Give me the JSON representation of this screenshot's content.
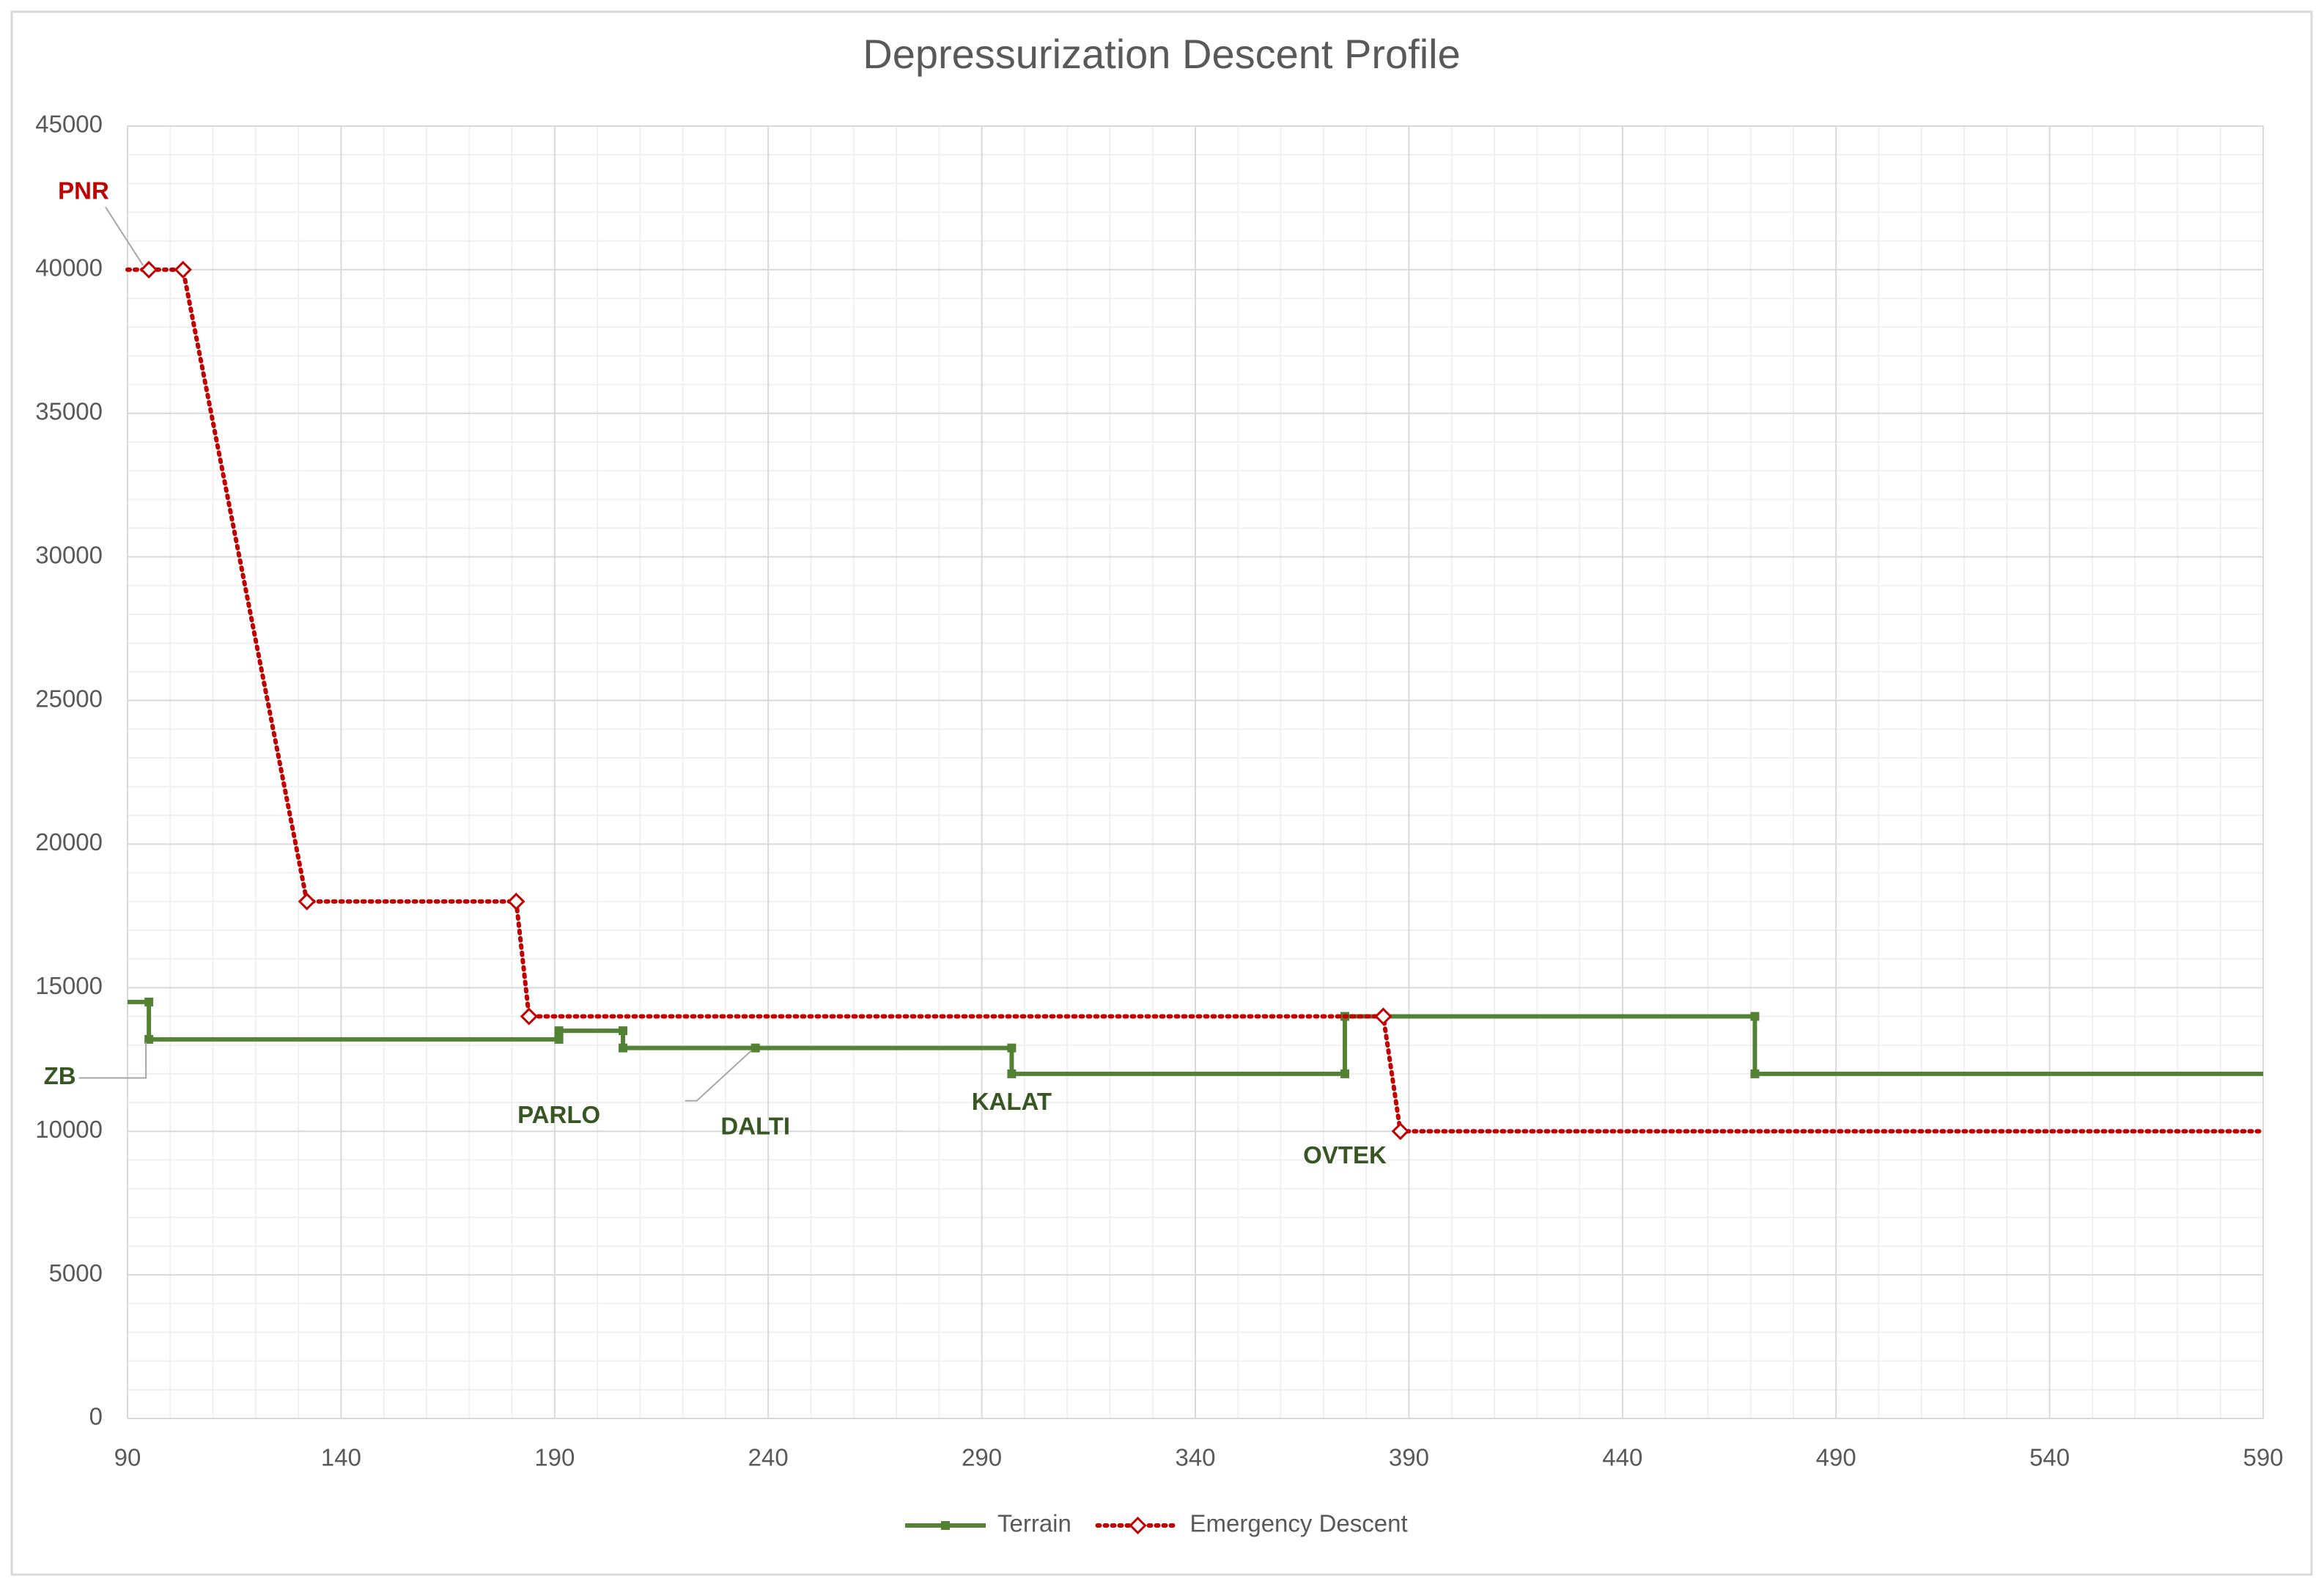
{
  "chart_data": {
    "type": "line",
    "title": "Depressurization Descent Profile",
    "xlim": [
      90,
      590
    ],
    "xticks": [
      90,
      140,
      190,
      240,
      290,
      340,
      390,
      440,
      490,
      540,
      590
    ],
    "ylim": [
      0,
      45000
    ],
    "yticks": [
      0,
      5000,
      10000,
      15000,
      20000,
      25000,
      30000,
      35000,
      40000,
      45000
    ],
    "grid": true,
    "minor_grid": true,
    "legend": "bottom",
    "series": [
      {
        "name": "Terrain",
        "color": "#548235",
        "marker": "square",
        "dash": "solid",
        "x": [
          90,
          95,
          95,
          191,
          191,
          206,
          206,
          237,
          297,
          297,
          375,
          375,
          471,
          471,
          590
        ],
        "values": [
          14500,
          14500,
          13200,
          13200,
          13500,
          13500,
          12900,
          12900,
          12900,
          12000,
          12000,
          14000,
          14000,
          12000,
          12000
        ],
        "point_labels": [
          null,
          null,
          "ZB",
          "PARLO",
          null,
          null,
          null,
          "DALTI",
          null,
          "KALAT",
          "OVTEK",
          null,
          null,
          null,
          null
        ],
        "label_color": "#375623"
      },
      {
        "name": "Emergency Descent",
        "color": "#c00000",
        "marker": "diamond",
        "dash": "dotted",
        "x": [
          90,
          95,
          103,
          132,
          181,
          184,
          384,
          388,
          590
        ],
        "values": [
          40000,
          40000,
          40000,
          18000,
          18000,
          14000,
          14000,
          10000,
          10000
        ],
        "point_labels": [
          null,
          "PNR",
          null,
          null,
          null,
          null,
          null,
          null,
          null
        ],
        "label_color": "#c00000"
      }
    ]
  }
}
